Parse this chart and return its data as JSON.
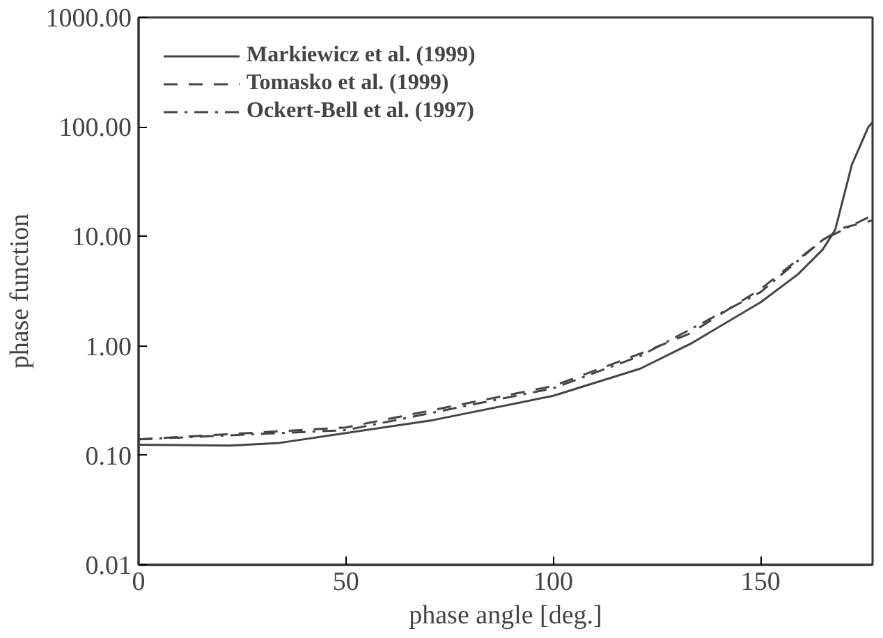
{
  "chart_data": {
    "type": "line",
    "xlabel": "phase angle [deg.]",
    "ylabel": "phase function",
    "log": "y",
    "grid": false,
    "legend": "top left",
    "xlim": [
      0,
      177
    ],
    "ylim": [
      0.01,
      1000
    ],
    "xticks": [
      0,
      50,
      100,
      150
    ],
    "yticks": [
      {
        "value": 0.01,
        "label": "0.01"
      },
      {
        "value": 0.1,
        "label": "0.10"
      },
      {
        "value": 1,
        "label": "1.00"
      },
      {
        "value": 10,
        "label": "10.00"
      },
      {
        "value": 100,
        "label": "100.00"
      },
      {
        "value": 1000,
        "label": "1000.00"
      }
    ],
    "series": [
      {
        "name": "Markiewicz et al. (1999)",
        "color": "#444444",
        "line_style": "solid",
        "x": [
          0,
          22,
          34,
          50,
          71,
          100,
          121,
          133,
          150,
          159,
          165,
          168,
          172,
          176,
          177
        ],
        "values": [
          0.125,
          0.123,
          0.13,
          0.16,
          0.21,
          0.35,
          0.62,
          1.04,
          2.5,
          4.5,
          7.6,
          11.5,
          45,
          100,
          110
        ]
      },
      {
        "name": "Tomasko et al. (1999)",
        "color": "#444444",
        "line_style": "dashed",
        "x": [
          0,
          50,
          100,
          121,
          133,
          150,
          165,
          170,
          177
        ],
        "values": [
          0.14,
          0.18,
          0.43,
          0.85,
          1.3,
          3.3,
          9.3,
          12,
          14
        ]
      },
      {
        "name": "Ockert-Bell et al. (1997)",
        "color": "#444444",
        "line_style": "dashdot",
        "x": [
          0,
          50,
          100,
          121,
          150,
          165,
          177
        ],
        "values": [
          0.14,
          0.17,
          0.41,
          0.81,
          3.1,
          9.3,
          15.6
        ]
      }
    ]
  }
}
